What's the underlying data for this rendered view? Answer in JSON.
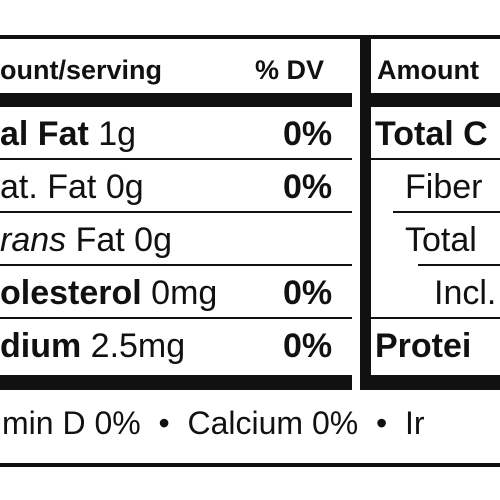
{
  "colors": {
    "ink": "#111111",
    "background": "#ffffff"
  },
  "label": {
    "left_panel": {
      "header": {
        "amount_per_serving": "ount/serving",
        "percent_dv": "% DV"
      },
      "rows": [
        {
          "name": "al Fat",
          "amount": "1g",
          "dv": "0%"
        },
        {
          "name": "at. Fat",
          "amount": "0g",
          "dv": "0%"
        },
        {
          "name": "rans",
          "suffix": "Fat 0g",
          "dv": ""
        },
        {
          "name": "olesterol",
          "amount": "0mg",
          "dv": "0%"
        },
        {
          "name": "dium",
          "amount": "2.5mg",
          "dv": "0%"
        }
      ]
    },
    "right_panel": {
      "header": {
        "amount": "Amount"
      },
      "rows": [
        {
          "name": "Total C"
        },
        {
          "name": "Fiber"
        },
        {
          "name": "Total"
        },
        {
          "name": "Incl."
        },
        {
          "name": "Protei"
        }
      ]
    },
    "footer": {
      "vitamins": "min D 0%  •  Calcium 0%  •  Ir"
    }
  }
}
